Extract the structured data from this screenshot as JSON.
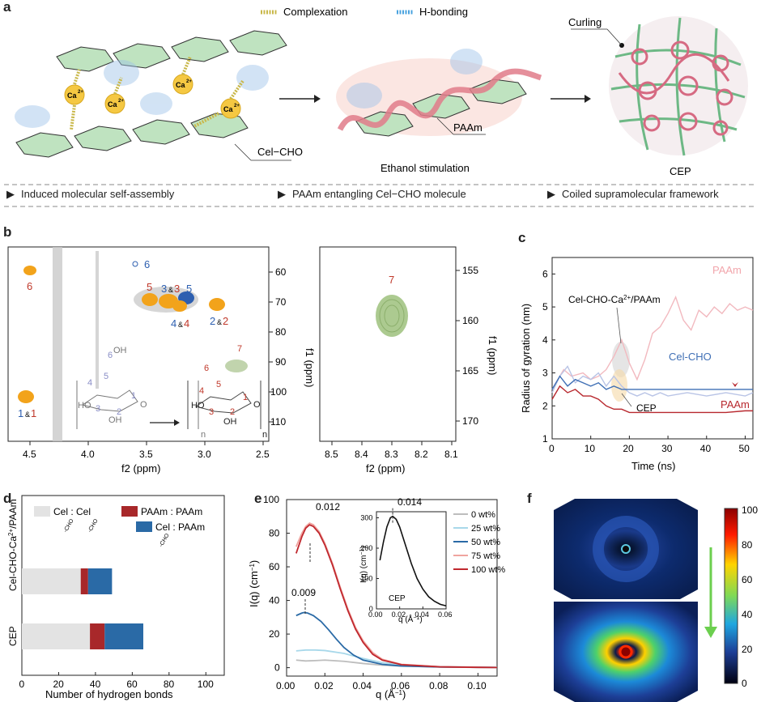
{
  "panel_a": {
    "label": "a",
    "legend_complexation": "Complexation",
    "legend_hbonding": "H-bonding",
    "cel_cho": "Cel−CHO",
    "paam": "PAAm",
    "ethanol": "Ethanol stimulation",
    "curling": "Curling",
    "cep": "CEP",
    "ca_label": "Ca",
    "ca_charge": "2+",
    "bullets": [
      "Induced molecular self-assembly",
      "PAAm entangling Cel−CHO molecule",
      "Coiled supramolecular framework"
    ],
    "colors": {
      "complex": "#c9b84a",
      "hbond": "#4aa3df",
      "paam": "#e07b8a",
      "sugar": "#bfe3c0",
      "ca": "#f5c842"
    }
  },
  "panel_b": {
    "label": "b",
    "left_xlabel": "f2 (ppm)",
    "left_ylabel": "f1 (ppm)",
    "left_xticks": [
      "4.5",
      "4.0",
      "3.5",
      "3.0",
      "2.5"
    ],
    "left_yticks": [
      "60",
      "70",
      "80",
      "90",
      "100",
      "110"
    ],
    "right_xlabel": "f2 (ppm)",
    "right_ylabel": "f1 (ppm)",
    "right_xticks": [
      "8.5",
      "8.4",
      "8.3",
      "8.2",
      "8.1"
    ],
    "right_yticks": [
      "155",
      "160",
      "165",
      "170"
    ],
    "peak_labels": {
      "p6_blue": "6",
      "p6_red": "6",
      "p5_red": "5",
      "p3_blue": "3",
      "amp1": "&",
      "p3_red": "3",
      "p5_blue": "5",
      "p2_blue": "2",
      "amp2": "&",
      "p2_red": "2",
      "p4_blue": "4",
      "amp3": "&",
      "p4_red": "4",
      "p1_blue": "1",
      "amp4": "&",
      "p1_red": "1",
      "p7": "7"
    },
    "struct_left_nums": [
      "6",
      "5",
      "4",
      "3",
      "2",
      "1"
    ],
    "struct_right_nums": [
      "7",
      "6",
      "5",
      "4",
      "3",
      "2",
      "1"
    ],
    "oh": "OH",
    "ho": "HO",
    "o": "O",
    "n": "n"
  },
  "panel_c": {
    "label": "c",
    "xlabel": "Time (ns)",
    "ylabel": "Radius of gyration (nm)",
    "xticks": [
      "0",
      "10",
      "20",
      "30",
      "40",
      "50"
    ],
    "yticks": [
      "1",
      "2",
      "3",
      "4",
      "5",
      "6"
    ],
    "ann_complex": "Cel-CHO-Ca",
    "ann_complex_sup": "2+",
    "ann_complex_tail": "/PAAm",
    "ann_paam_top": "PAAm",
    "ann_celcho": "Cel-CHO",
    "ann_paam_bottom": "PAAm",
    "ann_cep": "CEP"
  },
  "panel_d": {
    "label": "d",
    "xlabel": "Number of hydrogen bonds",
    "xticks": [
      "0",
      "20",
      "40",
      "60",
      "80",
      "100"
    ],
    "legend": [
      "Cel : Cel",
      "PAAm : PAAm",
      "Cel : PAAm"
    ],
    "sub_cho": "-CHO",
    "rows": [
      "Cel-CHO-Ca",
      "CEP"
    ],
    "row1_sup": "2+",
    "row1_tail": "/PAAm"
  },
  "panel_e": {
    "label": "e",
    "xlabel": "q (Å",
    "ylabel": "I(q) (cm",
    "sup": "−1",
    "xticks": [
      "0.00",
      "0.02",
      "0.04",
      "0.06",
      "0.08",
      "0.10"
    ],
    "yticks": [
      "0",
      "20",
      "40",
      "60",
      "80",
      "100"
    ],
    "peak_012": "0.012",
    "peak_009": "0.009",
    "legend": [
      "0 wt%",
      "25 wt%",
      "50 wt%",
      "75 wt%",
      "100 wt%"
    ],
    "inset": {
      "xlabel": "q (Å",
      "ylabel": "I(q) (cm",
      "xticks": [
        "0.00",
        "0.02",
        "0.04",
        "0.06"
      ],
      "yticks": [
        "0",
        "100",
        "200",
        "300"
      ],
      "peak": "0.014",
      "tag": "CEP"
    }
  },
  "panel_f": {
    "label": "f",
    "colorbar_ticks": [
      "100",
      "80",
      "60",
      "40",
      "20",
      "0"
    ]
  },
  "chart_data": [
    {
      "type": "line",
      "panel": "c",
      "xlabel": "Time (ns)",
      "ylabel": "Radius of gyration (nm)",
      "xlim": [
        0,
        52
      ],
      "ylim": [
        1,
        6.5
      ],
      "series": [
        {
          "name": "PAAm",
          "color": "#f2b9bf",
          "x": [
            0,
            3,
            5,
            8,
            10,
            12,
            14,
            16,
            18,
            20,
            22,
            24,
            26,
            28,
            30,
            32,
            34,
            36,
            38,
            40,
            42,
            44,
            46,
            48,
            50,
            52
          ],
          "y": [
            2.5,
            3.1,
            2.9,
            3.0,
            2.8,
            2.9,
            3.1,
            3.5,
            4.0,
            3.3,
            2.8,
            3.4,
            4.2,
            4.4,
            4.8,
            5.3,
            4.6,
            4.3,
            4.9,
            4.7,
            5.0,
            4.8,
            5.1,
            4.9,
            5.0,
            4.9
          ]
        },
        {
          "name": "Cel-CHO-Ca2+/PAAm",
          "color": "#b9c4e6",
          "x": [
            0,
            2,
            4,
            6,
            8,
            10,
            12,
            14,
            16,
            18,
            20,
            22,
            24,
            26,
            28,
            30,
            35,
            40,
            45,
            50,
            52
          ],
          "y": [
            2.4,
            2.9,
            3.2,
            2.7,
            2.9,
            2.8,
            3.0,
            2.6,
            2.9,
            2.6,
            2.4,
            2.3,
            2.4,
            2.3,
            2.4,
            2.3,
            2.4,
            2.3,
            2.4,
            2.3,
            2.4
          ]
        },
        {
          "name": "Cel-CHO",
          "color": "#3f6fb5",
          "x": [
            0,
            2,
            4,
            6,
            8,
            10,
            12,
            14,
            16,
            18,
            20,
            25,
            30,
            35,
            40,
            45,
            50,
            52
          ],
          "y": [
            2.5,
            2.9,
            2.6,
            2.8,
            2.7,
            2.6,
            2.7,
            2.5,
            2.6,
            2.5,
            2.5,
            2.5,
            2.5,
            2.5,
            2.5,
            2.5,
            2.5,
            2.5
          ]
        },
        {
          "name": "PAAm",
          "color": "#b8282e",
          "x": [
            0,
            2,
            4,
            6,
            8,
            10,
            12,
            14,
            16,
            18,
            20,
            25,
            30,
            35,
            40,
            45,
            50,
            52
          ],
          "y": [
            2.2,
            2.6,
            2.4,
            2.5,
            2.3,
            2.3,
            2.2,
            2.0,
            1.9,
            1.9,
            1.8,
            1.8,
            1.8,
            1.8,
            1.8,
            1.8,
            1.85,
            1.85
          ]
        }
      ]
    },
    {
      "type": "bar",
      "panel": "d",
      "orientation": "horizontal-stacked",
      "xlabel": "Number of hydrogen bonds",
      "xlim": [
        0,
        110
      ],
      "categories": [
        "Cel-CHO-Ca2+/PAAm",
        "CEP"
      ],
      "series": [
        {
          "name": "Cel : Cel",
          "color": "#e3e3e3",
          "values": [
            32,
            37
          ]
        },
        {
          "name": "PAAm : PAAm",
          "color": "#a8282a",
          "values": [
            4,
            8
          ]
        },
        {
          "name": "Cel : PAAm",
          "color": "#2a6aa6",
          "values": [
            13,
            21
          ]
        }
      ]
    },
    {
      "type": "line",
      "panel": "e",
      "xlabel": "q (Å−1)",
      "ylabel": "I(q) (cm−1)",
      "xlim": [
        0,
        0.11
      ],
      "ylim": [
        -5,
        100
      ],
      "series": [
        {
          "name": "0 wt%",
          "color": "#bdbdbd",
          "x": [
            0.005,
            0.01,
            0.015,
            0.02,
            0.03,
            0.04,
            0.05,
            0.06,
            0.08,
            0.1,
            0.11
          ],
          "y": [
            4.5,
            4.0,
            4.2,
            4.5,
            3.8,
            2.5,
            1.5,
            1.0,
            0.5,
            0.3,
            0.2
          ]
        },
        {
          "name": "25 wt%",
          "color": "#a8d8ea",
          "x": [
            0.005,
            0.01,
            0.015,
            0.02,
            0.03,
            0.04,
            0.05,
            0.06,
            0.08,
            0.1,
            0.11
          ],
          "y": [
            10,
            10.5,
            10.5,
            10.2,
            8.5,
            5.5,
            3.0,
            1.6,
            0.6,
            0.3,
            0.2
          ]
        },
        {
          "name": "50 wt%",
          "color": "#2a6aa6",
          "x": [
            0.005,
            0.008,
            0.009,
            0.011,
            0.014,
            0.018,
            0.022,
            0.026,
            0.03,
            0.035,
            0.04,
            0.05,
            0.06,
            0.08,
            0.1,
            0.11
          ],
          "y": [
            31,
            32.5,
            32.8,
            32.5,
            31,
            27.5,
            22.5,
            17,
            12,
            7.5,
            4.5,
            2.0,
            1.0,
            0.4,
            0.2,
            0.1
          ]
        },
        {
          "name": "75 wt%",
          "color": "#f0a49f",
          "x": [
            0.005,
            0.008,
            0.01,
            0.012,
            0.014,
            0.017,
            0.02,
            0.024,
            0.028,
            0.032,
            0.036,
            0.04,
            0.045,
            0.05,
            0.06,
            0.08,
            0.1,
            0.11
          ],
          "y": [
            72,
            80,
            84,
            86,
            85,
            81,
            74,
            62,
            48,
            35,
            24,
            16,
            9,
            5,
            2,
            0.5,
            0.2,
            0.1
          ]
        },
        {
          "name": "100 wt%",
          "color": "#c0282e",
          "x": [
            0.005,
            0.008,
            0.01,
            0.012,
            0.014,
            0.017,
            0.02,
            0.024,
            0.028,
            0.032,
            0.036,
            0.04,
            0.045,
            0.05,
            0.06,
            0.08,
            0.1,
            0.11
          ],
          "y": [
            68,
            78,
            83,
            85,
            84,
            80,
            73,
            61,
            47,
            34,
            23,
            15,
            8,
            4.5,
            1.8,
            0.5,
            0.2,
            0.1
          ]
        }
      ]
    },
    {
      "type": "line",
      "panel": "e-inset",
      "series_name": "CEP",
      "xlabel": "q (Å−1)",
      "ylabel": "I(q) (cm−1)",
      "xlim": [
        0,
        0.06
      ],
      "ylim": [
        0,
        320
      ],
      "series": [
        {
          "name": "CEP",
          "color": "#111111",
          "x": [
            0.003,
            0.006,
            0.009,
            0.012,
            0.014,
            0.017,
            0.02,
            0.025,
            0.03,
            0.035,
            0.04,
            0.045,
            0.05,
            0.055,
            0.06
          ],
          "y": [
            160,
            220,
            270,
            300,
            305,
            295,
            270,
            210,
            150,
            100,
            65,
            40,
            25,
            15,
            10
          ]
        }
      ]
    }
  ]
}
